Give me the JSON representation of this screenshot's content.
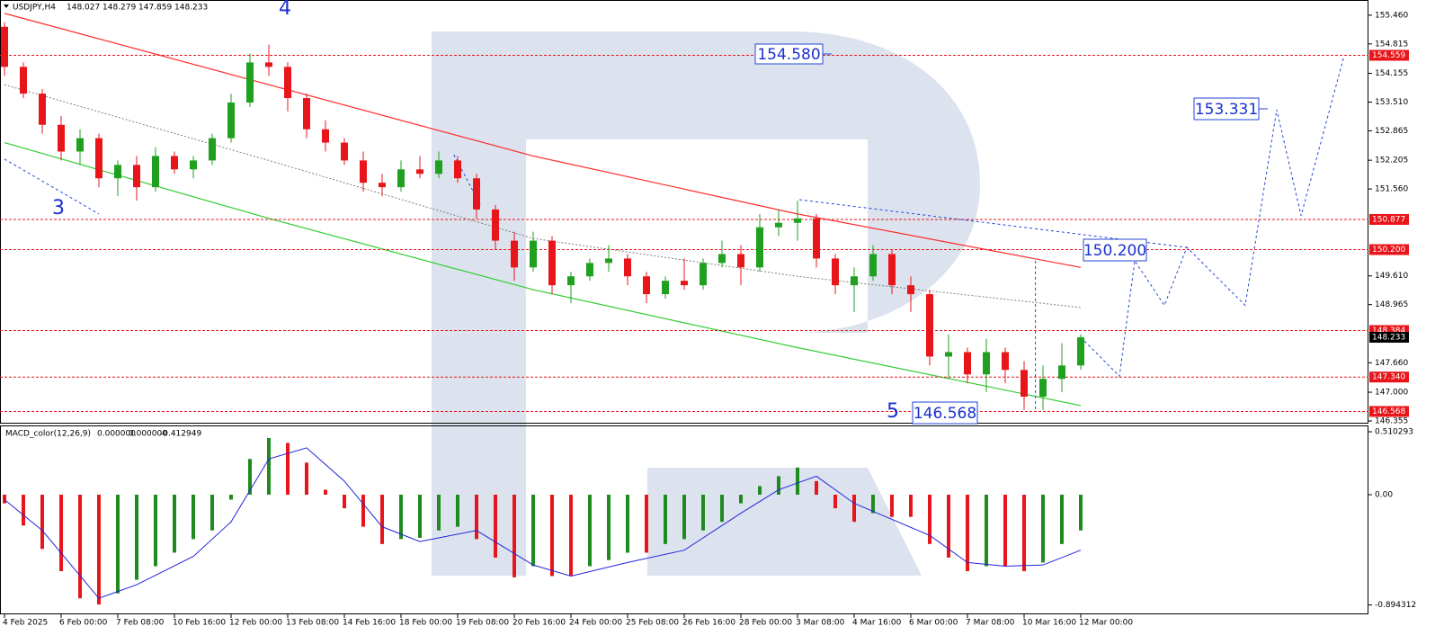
{
  "header": {
    "symbol": "USDJPY,H4",
    "ohlc": [
      148.027,
      148.279,
      147.859,
      148.233
    ]
  },
  "chart_data": [
    {
      "type": "candlestick",
      "categories": [
        "4 Feb 2025",
        null,
        null,
        "6 Feb 00:00",
        null,
        null,
        "7 Feb 08:00",
        null,
        null,
        "10 Feb 16:00",
        null,
        null,
        "12 Feb 00:00",
        null,
        null,
        "13 Feb 08:00",
        null,
        null,
        "14 Feb 16:00",
        null,
        null,
        "18 Feb 00:00",
        null,
        null,
        "19 Feb 08:00",
        null,
        null,
        "20 Feb 16:00",
        null,
        null,
        "24 Feb 00:00",
        null,
        null,
        "25 Feb 08:00",
        null,
        null,
        "26 Feb 16:00",
        null,
        null,
        "28 Feb 00:00",
        null,
        null,
        "3 Mar 08:00",
        null,
        null,
        "4 Mar 16:00",
        null,
        null,
        "6 Mar 00:00",
        null,
        null,
        "7 Mar 08:00",
        null,
        null,
        "10 Mar 16:00",
        null,
        null,
        "12 Mar 00:00"
      ],
      "open": [
        155.2,
        154.3,
        153.7,
        153.0,
        152.4,
        152.7,
        151.8,
        152.1,
        151.6,
        152.3,
        152.0,
        152.2,
        152.7,
        153.5,
        154.4,
        154.3,
        153.6,
        152.9,
        152.6,
        152.2,
        151.7,
        151.6,
        152.0,
        151.9,
        152.2,
        151.8,
        151.1,
        150.4,
        149.8,
        150.4,
        149.4,
        149.6,
        149.9,
        150.0,
        149.6,
        149.2,
        149.5,
        149.4,
        149.9,
        150.1,
        149.8,
        150.7,
        150.8,
        150.9,
        150.0,
        149.4,
        149.6,
        150.1,
        149.4,
        149.2,
        147.8,
        147.9,
        147.4,
        147.9,
        147.5,
        146.9,
        147.3,
        147.6
      ],
      "high": [
        155.3,
        154.4,
        153.8,
        153.2,
        152.9,
        152.8,
        152.2,
        152.3,
        152.5,
        152.4,
        152.3,
        152.8,
        153.7,
        154.6,
        154.8,
        154.4,
        153.7,
        153.1,
        152.7,
        152.4,
        151.9,
        152.2,
        152.3,
        152.4,
        152.3,
        151.9,
        151.2,
        150.6,
        150.6,
        150.5,
        149.7,
        150.0,
        150.3,
        150.1,
        149.7,
        149.6,
        150.0,
        150.0,
        150.4,
        150.3,
        151.0,
        151.1,
        151.3,
        151.0,
        150.1,
        149.8,
        150.3,
        150.2,
        149.6,
        149.3,
        148.3,
        148.0,
        148.2,
        148.0,
        147.7,
        147.6,
        148.1,
        148.3
      ],
      "low": [
        154.1,
        153.6,
        152.8,
        152.2,
        152.1,
        151.6,
        151.4,
        151.3,
        151.5,
        151.9,
        151.8,
        152.1,
        152.6,
        153.4,
        154.1,
        153.3,
        152.7,
        152.4,
        152.1,
        151.5,
        151.4,
        151.5,
        151.8,
        151.8,
        151.7,
        150.9,
        150.2,
        149.5,
        149.7,
        149.2,
        149.0,
        149.5,
        149.7,
        149.4,
        149.0,
        149.1,
        149.3,
        149.3,
        149.8,
        149.4,
        149.7,
        150.5,
        150.4,
        149.8,
        149.2,
        148.8,
        149.5,
        149.2,
        148.8,
        147.6,
        147.3,
        147.2,
        147.0,
        147.2,
        146.6,
        146.6,
        147.0,
        147.5
      ],
      "close": [
        154.3,
        153.7,
        153.0,
        152.4,
        152.7,
        151.8,
        152.1,
        151.6,
        152.3,
        152.0,
        152.2,
        152.7,
        153.5,
        154.4,
        154.3,
        153.6,
        152.9,
        152.6,
        152.2,
        151.7,
        151.6,
        152.0,
        151.9,
        152.2,
        151.8,
        151.1,
        150.4,
        149.8,
        150.4,
        149.4,
        149.6,
        149.9,
        150.0,
        149.6,
        149.2,
        149.5,
        149.4,
        149.9,
        150.1,
        149.8,
        150.7,
        150.8,
        150.9,
        150.0,
        149.4,
        149.6,
        150.1,
        149.4,
        149.2,
        147.8,
        147.9,
        147.4,
        147.9,
        147.5,
        146.9,
        147.3,
        147.6,
        148.233
      ],
      "up_color": "#1fa01f",
      "down_color": "#e8161b",
      "overlays": [
        {
          "x": [
            0,
            14,
            28,
            42,
            57
          ],
          "values": [
            155.5,
            153.9,
            152.3,
            151.0,
            149.8
          ],
          "color": "#ff2a2a",
          "style": "solid"
        },
        {
          "x": [
            0,
            14,
            28,
            42,
            57
          ],
          "values": [
            153.9,
            152.2,
            150.45,
            149.6,
            148.9
          ],
          "color": "#808080",
          "style": "dotted"
        },
        {
          "x": [
            0,
            14,
            28,
            42,
            57
          ],
          "values": [
            152.6,
            150.9,
            149.3,
            148.0,
            146.7
          ],
          "color": "#33cc33",
          "style": "solid"
        }
      ],
      "trendlines": [
        {
          "x": [
            0,
            5
          ],
          "values": [
            152.23,
            151.0
          ]
        },
        {
          "x": [
            23.8,
            25.2
          ],
          "values": [
            152.33,
            151.2
          ]
        },
        {
          "x": [
            42.1,
            62.6
          ],
          "values": [
            151.32,
            150.25
          ]
        },
        {
          "x": [
            54.6,
            54.6
          ],
          "values": [
            146.62,
            150.01
          ]
        },
        {
          "x": [
            57,
            59.05,
            59.86,
            61.43,
            62.62,
            65.71,
            67.38,
            68.67,
            70.95
          ],
          "values": [
            148.233,
            147.36,
            149.95,
            148.95,
            150.25,
            148.95,
            153.34,
            150.96,
            154.55
          ]
        }
      ],
      "trend_color": "#2346d6",
      "levels": [
        154.559,
        150.877,
        {
          "value": 150.2,
          "label": "150.200"
        },
        148.384,
        {
          "value": 147.34,
          "label": "147.340"
        },
        146.568
      ],
      "level_color": "#e8161b",
      "last_price": 148.233,
      "annotations": [
        "154.580",
        "153.331",
        "150.200",
        "146.568"
      ],
      "wave_labels": [
        "4",
        "3",
        "5"
      ],
      "ylim": [
        146.315,
        155.76
      ],
      "yticks": [
        {
          "value": 155.46,
          "label": "155.460"
        },
        {
          "value": 154.815,
          "label": "154.815"
        },
        {
          "value": 154.155,
          "label": "154.155"
        },
        {
          "value": 153.51,
          "label": "153.510"
        },
        {
          "value": 152.865,
          "label": "152.865"
        },
        {
          "value": 152.205,
          "label": "152.205"
        },
        {
          "value": 151.56,
          "label": "151.560"
        },
        {
          "value": 149.61,
          "label": "149.610"
        },
        {
          "value": 148.965,
          "label": "148.965"
        },
        {
          "value": 147.66,
          "label": "147.660"
        },
        {
          "value": 147,
          "label": "147.000"
        },
        {
          "value": 146.355,
          "label": "146.355"
        }
      ]
    },
    {
      "type": "macd",
      "title": "MACD_color(12,26,9)",
      "indicator_values": [
        "0.000000",
        "0.000000",
        "-0.412949"
      ],
      "values": [
        -0.07,
        -0.25,
        -0.44,
        -0.62,
        -0.84,
        -0.89,
        -0.8,
        -0.69,
        -0.58,
        -0.47,
        -0.36,
        -0.29,
        -0.04,
        0.29,
        0.46,
        0.42,
        0.26,
        0.04,
        -0.11,
        -0.26,
        -0.4,
        -0.36,
        -0.35,
        -0.29,
        -0.26,
        -0.36,
        -0.51,
        -0.67,
        -0.58,
        -0.66,
        -0.66,
        -0.58,
        -0.53,
        -0.47,
        -0.47,
        -0.4,
        -0.36,
        -0.29,
        -0.22,
        -0.07,
        0.07,
        0.15,
        0.22,
        0.11,
        -0.11,
        -0.22,
        -0.15,
        -0.18,
        -0.18,
        -0.4,
        -0.51,
        -0.62,
        -0.58,
        -0.58,
        -0.62,
        -0.55,
        -0.4,
        -0.29
      ],
      "signal": {
        "x": [
          0,
          2,
          5,
          7,
          10,
          12,
          14,
          16,
          18,
          20,
          22,
          25,
          28,
          30,
          33,
          36,
          39,
          41,
          43,
          45,
          47,
          49,
          51,
          53,
          55,
          57
        ],
        "values": [
          -0.04,
          -0.29,
          -0.84,
          -0.73,
          -0.5,
          -0.22,
          0.29,
          0.38,
          0.11,
          -0.26,
          -0.38,
          -0.29,
          -0.57,
          -0.66,
          -0.55,
          -0.45,
          -0.15,
          0.04,
          0.15,
          -0.07,
          -0.2,
          -0.33,
          -0.55,
          -0.58,
          -0.57,
          -0.45
        ]
      },
      "up_color": "#1f8a1f",
      "down_color": "#e8161b",
      "signal_color": "#2323d8",
      "ylim": [
        -0.97,
        0.547
      ],
      "yticks": [
        0.510293,
        {
          "value": 0,
          "label": "0.00"
        },
        -0.894312
      ]
    }
  ]
}
